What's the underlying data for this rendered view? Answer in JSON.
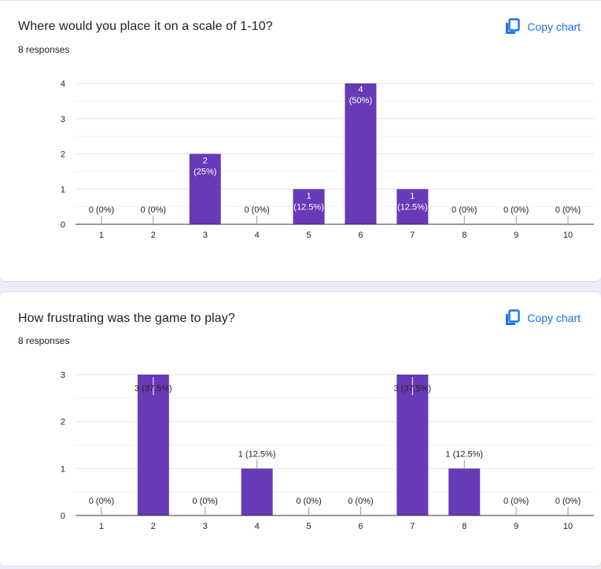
{
  "colors": {
    "bar": "#673ab7",
    "accent": "#1a73e8",
    "grid": "#e6e6e6",
    "axis": "#333333"
  },
  "copy_label": "Copy chart",
  "copy_icon": "copy-icon",
  "questions": [
    {
      "title": "Where would you place it on a scale of 1-10?",
      "responses": "8 responses"
    },
    {
      "title": "How frustrating was the game to play?",
      "responses": "8 responses"
    }
  ],
  "chart_data": [
    {
      "type": "bar",
      "title": "Where would you place it on a scale of 1-10?",
      "categories": [
        "1",
        "2",
        "3",
        "4",
        "5",
        "6",
        "7",
        "8",
        "9",
        "10"
      ],
      "values": [
        0,
        0,
        2,
        0,
        1,
        4,
        1,
        0,
        0,
        0
      ],
      "labels": [
        "0 (0%)",
        "0 (0%)",
        "2 (25%)",
        "0 (0%)",
        "1 (12.5%)",
        "4 (50%)",
        "1 (12.5%)",
        "0 (0%)",
        "0 (0%)",
        "0 (0%)"
      ],
      "yticks": [
        0,
        1,
        2,
        3,
        4
      ],
      "ylim": [
        0,
        4
      ],
      "grid": true,
      "legend": "none"
    },
    {
      "type": "bar",
      "title": "How frustrating was the game to play?",
      "categories": [
        "1",
        "2",
        "3",
        "4",
        "5",
        "6",
        "7",
        "8",
        "9",
        "10"
      ],
      "values": [
        0,
        3,
        0,
        1,
        0,
        0,
        3,
        1,
        0,
        0
      ],
      "labels": [
        "0 (0%)",
        "3 (37.5%)",
        "0 (0%)",
        "1 (12.5%)",
        "0 (0%)",
        "0 (0%)",
        "3 (37.5%)",
        "1 (12.5%)",
        "0 (0%)",
        "0 (0%)"
      ],
      "yticks": [
        0,
        1,
        2,
        3
      ],
      "ylim": [
        0,
        3
      ],
      "grid": true,
      "legend": "none"
    }
  ]
}
